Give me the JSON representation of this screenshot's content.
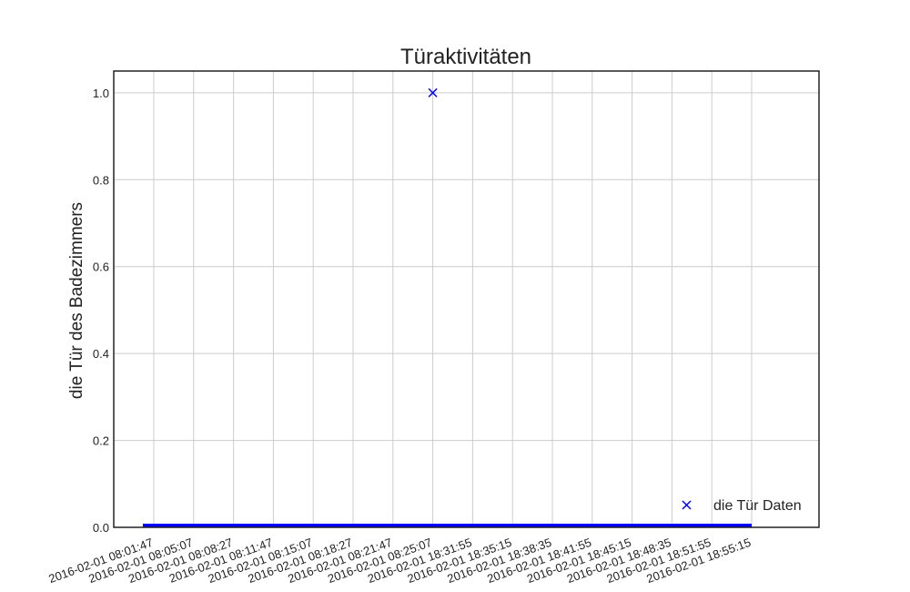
{
  "chart_data": {
    "type": "scatter",
    "title": "Türaktivitäten",
    "xlabel": "",
    "ylabel": "die Tür des Badezimmers",
    "x_tick_labels": [
      "2016-02-01 08:01:47",
      "2016-02-01 08:05:07",
      "2016-02-01 08:08:27",
      "2016-02-01 08:11:47",
      "2016-02-01 08:15:07",
      "2016-02-01 08:18:27",
      "2016-02-01 08:21:47",
      "2016-02-01 08:25:07",
      "2016-02-01 18:31:55",
      "2016-02-01 18:35:15",
      "2016-02-01 18:38:35",
      "2016-02-01 18:41:55",
      "2016-02-01 18:45:15",
      "2016-02-01 18:48:35",
      "2016-02-01 18:51:55",
      "2016-02-01 18:55:15"
    ],
    "y_tick_labels": [
      "0.0",
      "0.2",
      "0.4",
      "0.6",
      "0.8",
      "1.0"
    ],
    "y_ticks": [
      0.0,
      0.2,
      0.4,
      0.6,
      0.8,
      1.0
    ],
    "ylim": [
      0.0,
      1.05
    ],
    "grid": true,
    "legend_position": "lower right",
    "series": [
      {
        "name": "die Tür Daten",
        "marker": "x",
        "color": "#0000ff",
        "points": [
          {
            "x": "2016-02-01 08:25:07",
            "y": 1.0
          }
        ],
        "baseline": {
          "y": 0.0,
          "from": "2016-02-01 08:01:47",
          "to": "2016-02-01 18:55:15"
        }
      }
    ]
  }
}
